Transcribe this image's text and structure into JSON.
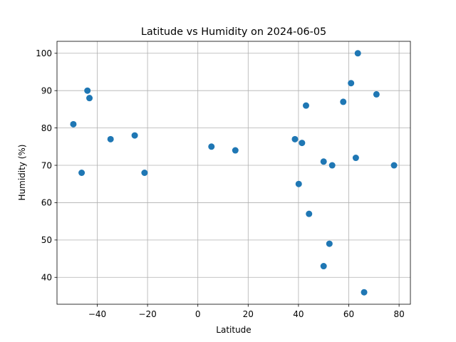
{
  "chart_data": {
    "type": "scatter",
    "title": "Latitude vs Humidity on 2024-06-05",
    "xlabel": "Latitude",
    "ylabel": "Humidity (%)",
    "xlim": [
      -56,
      84.5
    ],
    "ylim": [
      32.8,
      103.2
    ],
    "xticks": [
      -40,
      -20,
      0,
      20,
      40,
      60,
      80
    ],
    "yticks": [
      40,
      50,
      60,
      70,
      80,
      90,
      100
    ],
    "grid": true,
    "marker_color": "#1f77b4",
    "points": [
      {
        "x": -49.5,
        "y": 81
      },
      {
        "x": -46.2,
        "y": 68
      },
      {
        "x": -43.9,
        "y": 90
      },
      {
        "x": -43.1,
        "y": 88
      },
      {
        "x": -34.7,
        "y": 77
      },
      {
        "x": -25.1,
        "y": 78
      },
      {
        "x": -21.2,
        "y": 68
      },
      {
        "x": 5.4,
        "y": 75
      },
      {
        "x": 14.9,
        "y": 74
      },
      {
        "x": 38.6,
        "y": 77
      },
      {
        "x": 40.1,
        "y": 65
      },
      {
        "x": 41.4,
        "y": 76
      },
      {
        "x": 43.0,
        "y": 86
      },
      {
        "x": 44.2,
        "y": 57
      },
      {
        "x": 50.0,
        "y": 71
      },
      {
        "x": 50.0,
        "y": 43
      },
      {
        "x": 52.3,
        "y": 49
      },
      {
        "x": 53.4,
        "y": 70
      },
      {
        "x": 57.8,
        "y": 87
      },
      {
        "x": 60.9,
        "y": 92
      },
      {
        "x": 62.8,
        "y": 72
      },
      {
        "x": 63.6,
        "y": 100
      },
      {
        "x": 66.1,
        "y": 36
      },
      {
        "x": 71.0,
        "y": 89
      },
      {
        "x": 78.0,
        "y": 70
      }
    ]
  }
}
